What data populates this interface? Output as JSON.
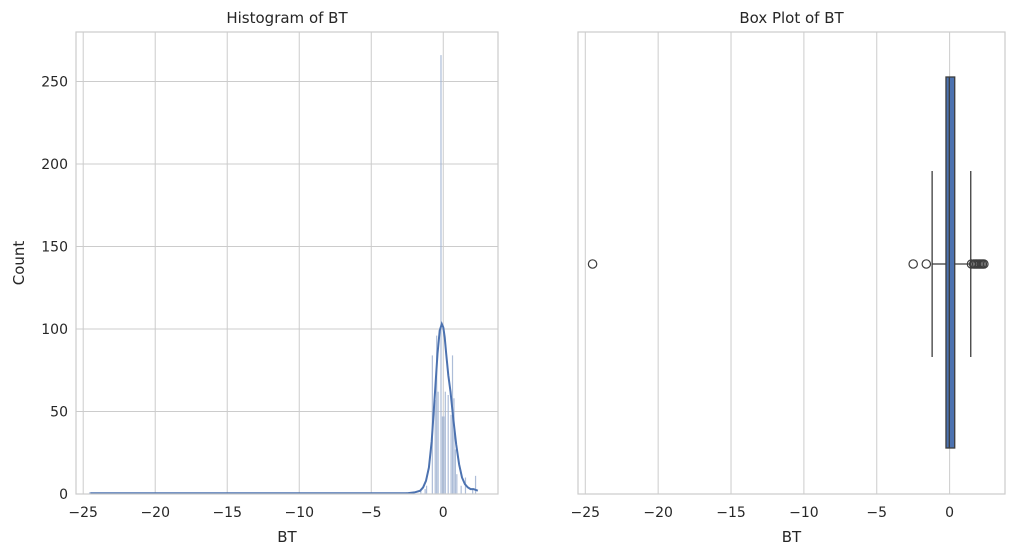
{
  "chart_data": [
    {
      "type": "histogram",
      "title": "Histogram of BT",
      "xlabel": "BT",
      "ylabel": "Count",
      "xlim": [
        -25.5,
        3.8
      ],
      "ylim": [
        0,
        280
      ],
      "xticks": [
        -25,
        -20,
        -15,
        -10,
        -5,
        0
      ],
      "xtick_labels": [
        "−25",
        "−20",
        "−15",
        "−10",
        "−5",
        "0"
      ],
      "yticks": [
        0,
        50,
        100,
        150,
        200,
        250
      ],
      "ytick_labels": [
        "0",
        "50",
        "100",
        "150",
        "200",
        "250"
      ],
      "grid": true,
      "bar_color": "#9fb2d1",
      "kde_color": "#4c72b0",
      "bins": [
        {
          "x0": -24.6,
          "x1": -24.4,
          "count": 1
        },
        {
          "x0": -2.6,
          "x1": -2.5,
          "count": 1
        },
        {
          "x0": -1.6,
          "x1": -1.5,
          "count": 3
        },
        {
          "x0": -1.3,
          "x1": -1.2,
          "count": 3
        },
        {
          "x0": -1.2,
          "x1": -1.1,
          "count": 5
        },
        {
          "x0": -0.8,
          "x1": -0.7,
          "count": 84
        },
        {
          "x0": -0.6,
          "x1": -0.5,
          "count": 57
        },
        {
          "x0": -0.5,
          "x1": -0.4,
          "count": 96
        },
        {
          "x0": -0.4,
          "x1": -0.3,
          "count": 62
        },
        {
          "x0": -0.2,
          "x1": -0.1,
          "count": 266
        },
        {
          "x0": -0.1,
          "x1": 0.0,
          "count": 47
        },
        {
          "x0": 0.0,
          "x1": 0.1,
          "count": 47
        },
        {
          "x0": 0.1,
          "x1": 0.2,
          "count": 62
        },
        {
          "x0": 0.3,
          "x1": 0.4,
          "count": 60
        },
        {
          "x0": 0.5,
          "x1": 0.6,
          "count": 48
        },
        {
          "x0": 0.6,
          "x1": 0.7,
          "count": 84
        },
        {
          "x0": 0.7,
          "x1": 0.8,
          "count": 58
        },
        {
          "x0": 0.8,
          "x1": 0.9,
          "count": 27
        },
        {
          "x0": 0.9,
          "x1": 1.0,
          "count": 12
        },
        {
          "x0": 1.2,
          "x1": 1.3,
          "count": 5
        },
        {
          "x0": 1.5,
          "x1": 1.6,
          "count": 10
        },
        {
          "x0": 2.0,
          "x1": 2.1,
          "count": 3
        },
        {
          "x0": 2.2,
          "x1": 2.3,
          "count": 11
        }
      ],
      "kde": {
        "x": [
          -24.5,
          -2.5,
          -2.0,
          -1.6,
          -1.4,
          -1.2,
          -1.0,
          -0.8,
          -0.6,
          -0.4,
          -0.25,
          -0.1,
          0.0,
          0.1,
          0.2,
          0.35,
          0.5,
          0.7,
          0.9,
          1.1,
          1.3,
          1.5,
          1.7,
          1.9,
          2.1,
          2.4
        ],
        "y": [
          0.5,
          0.5,
          1,
          2,
          4,
          8,
          16,
          32,
          58,
          85,
          99,
          103,
          101,
          95,
          85,
          72,
          62,
          45,
          30,
          18,
          10,
          6,
          4,
          3,
          3,
          2
        ]
      }
    },
    {
      "type": "box",
      "title": "Box Plot of BT",
      "xlabel": "BT",
      "xlim": [
        -25.5,
        3.8
      ],
      "xticks": [
        -25,
        -20,
        -15,
        -10,
        -5,
        0
      ],
      "xtick_labels": [
        "−25",
        "−20",
        "−15",
        "−10",
        "−5",
        "0"
      ],
      "grid": true,
      "box_color": "#4c72b0",
      "q1": -0.25,
      "median": -0.02,
      "q3": 0.35,
      "whisker_low": -1.2,
      "whisker_high": 1.45,
      "outliers": [
        -24.5,
        -2.5,
        -1.6,
        1.5,
        1.65,
        1.75,
        1.85,
        1.95,
        2.05,
        2.15,
        2.25,
        2.35
      ]
    }
  ]
}
